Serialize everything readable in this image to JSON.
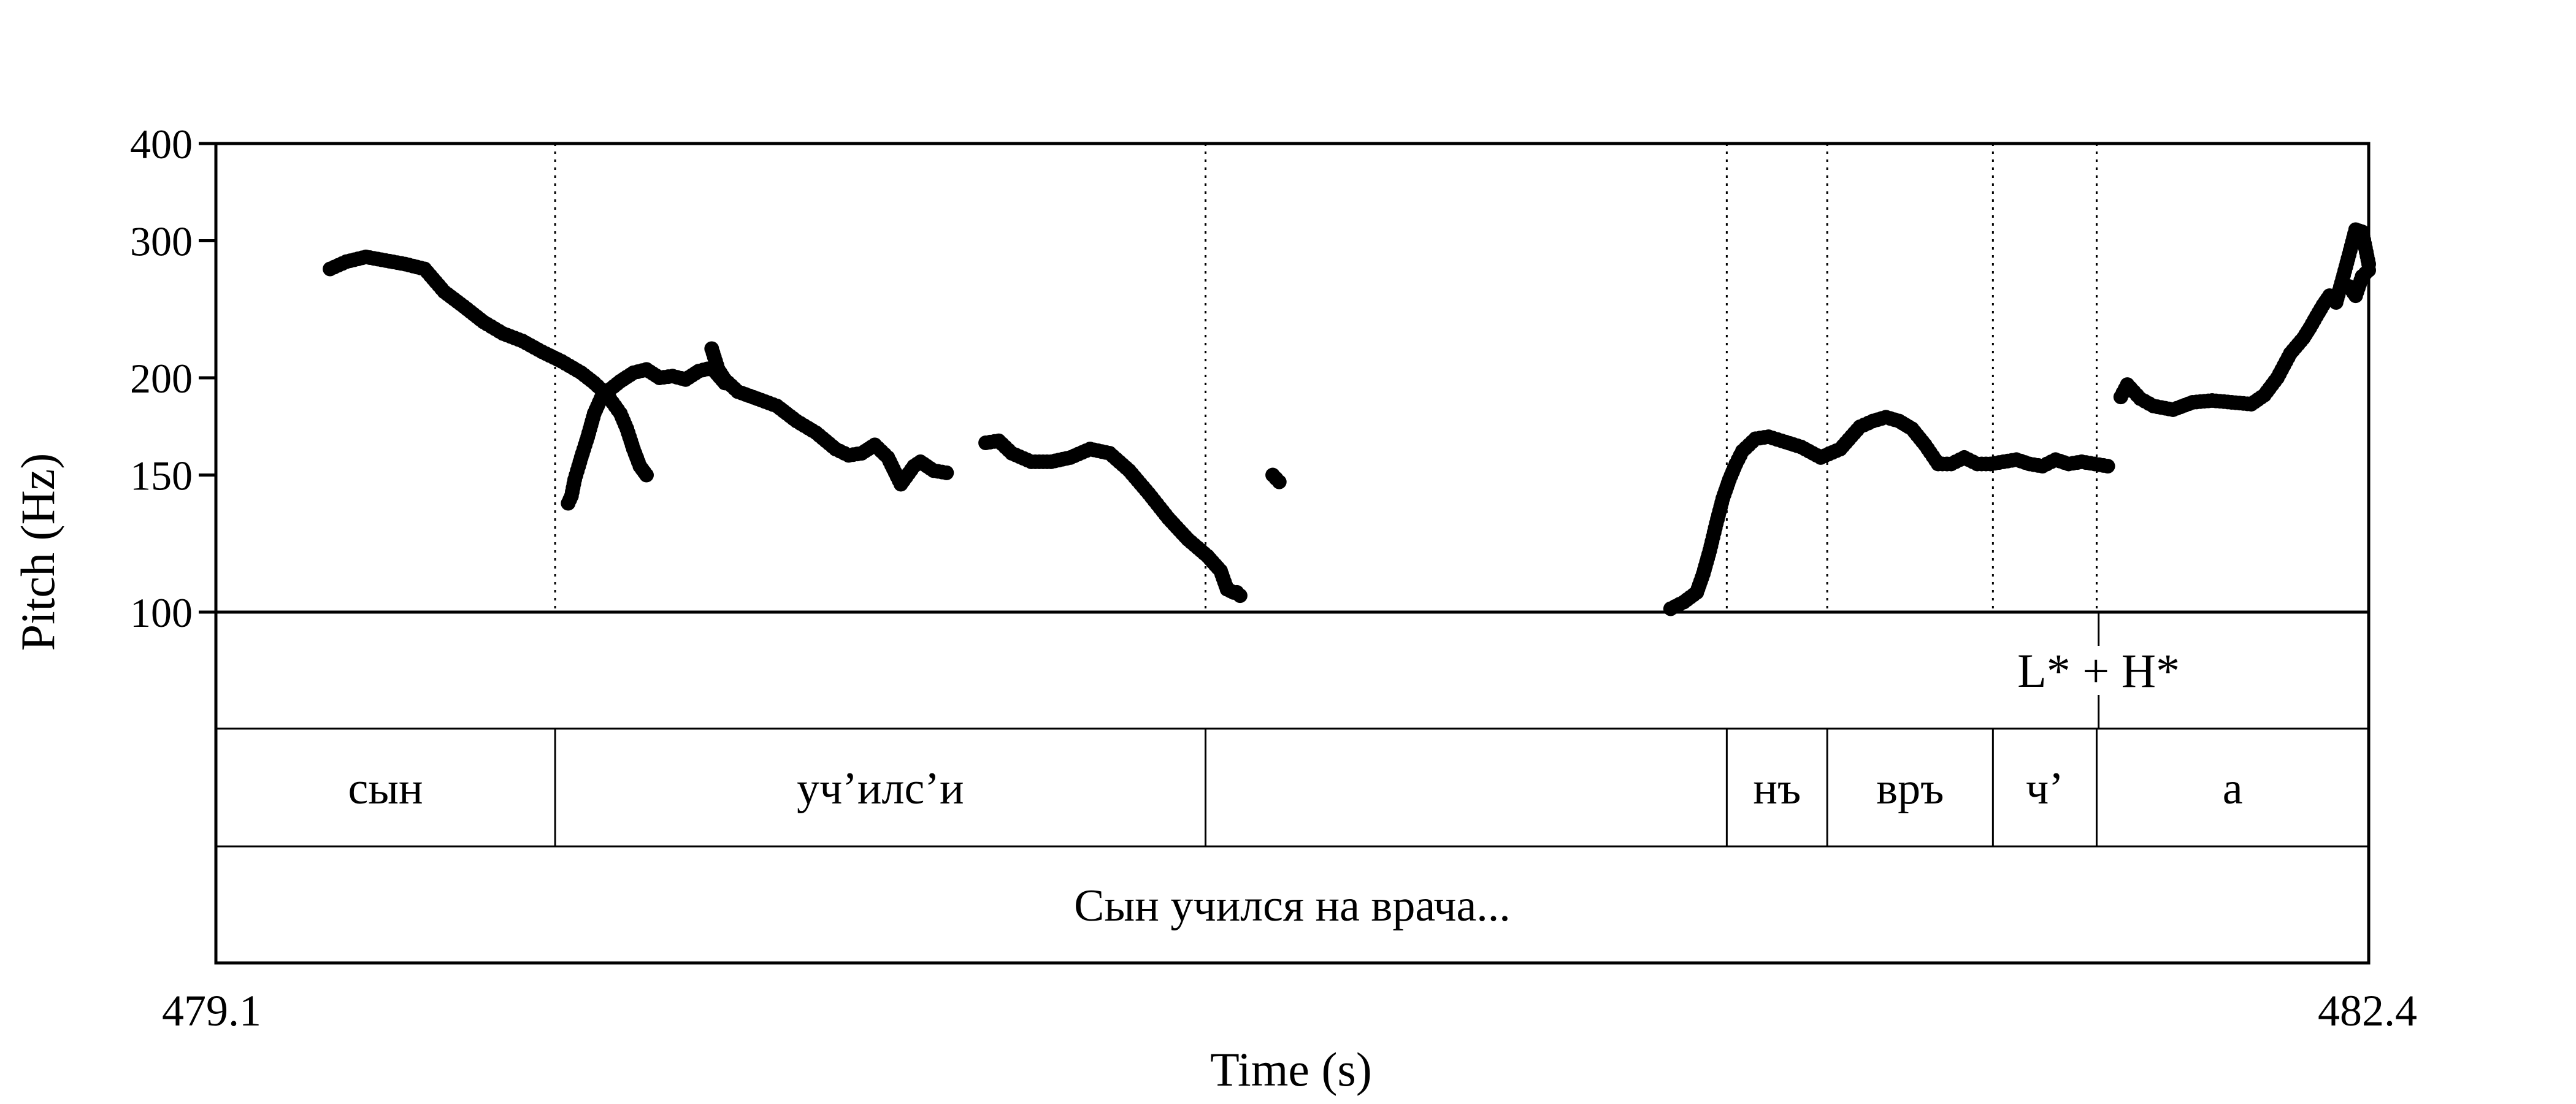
{
  "chart_data": {
    "type": "scatter",
    "title": "",
    "xlabel": "Time (s)",
    "ylabel": "Pitch (Hz)",
    "xlim": [
      479.1,
      482.4
    ],
    "ylim": [
      100,
      400
    ],
    "yscale": "log",
    "yticks": [
      100,
      150,
      200,
      300,
      400
    ],
    "x_end_labels": [
      "479.1",
      "482.4"
    ],
    "grid": false,
    "legend": "none",
    "marker_color": "#000000",
    "pitch_segments": [
      {
        "x": [
          479.28,
          479.32,
          479.36,
          479.4,
          479.44,
          479.48,
          479.52,
          479.56,
          479.6,
          479.63,
          479.66,
          479.69,
          479.72,
          479.735,
          479.745,
          479.755,
          479.76
        ],
        "y": [
          275,
          285,
          282,
          277,
          255,
          238,
          222,
          215,
          205,
          197,
          190,
          182,
          172,
          160,
          153,
          150,
          150
        ]
      },
      {
        "x": [
          479.64,
          479.625,
          479.635,
          479.645,
          479.655,
          479.66
        ],
        "y": [
          179,
          182,
          168,
          160,
          152,
          150
        ]
      },
      {
        "x": [
          479.63,
          479.66
        ],
        "y": [
          195,
          188
        ]
      },
      {
        "x": [
          479.62,
          479.64,
          479.655,
          479.665,
          479.675,
          479.69
        ],
        "y": [
          200,
          192,
          185,
          178,
          168,
          160
        ]
      },
      {
        "x": [
          479.63,
          479.66,
          479.69
        ],
        "y": [
          196,
          190,
          182
        ]
      },
      {
        "x": [
          479.655,
          479.665,
          479.68,
          479.695
        ],
        "y": [
          178,
          172,
          165,
          160
        ]
      },
      {
        "x": [
          479.67,
          479.68,
          479.69,
          479.7
        ],
        "y": [
          170,
          166,
          162,
          158
        ]
      },
      {
        "x": [
          479.72,
          479.73,
          479.74,
          479.75,
          479.76
        ],
        "y": [
          167,
          162,
          157,
          152,
          150
        ]
      },
      {
        "x": [
          479.63,
          479.65,
          479.67,
          479.69,
          479.71,
          479.73,
          479.75
        ],
        "y": [
          190,
          185,
          178,
          170,
          162,
          155,
          150
        ]
      },
      {
        "x": [
          479.62,
          479.64,
          479.66,
          479.68,
          479.7,
          479.72
        ],
        "y": [
          205,
          198,
          190,
          180,
          170,
          160
        ]
      },
      {
        "x": [
          479.735,
          479.745,
          479.755,
          479.76
        ],
        "y": [
          160,
          155,
          151,
          150
        ]
      }
    ],
    "pitch_segments_main": [
      {
        "x": [
          479.275,
          479.3,
          479.33,
          479.36,
          479.39,
          479.42,
          479.45,
          479.48,
          479.51,
          479.54,
          479.57,
          479.6,
          479.63,
          479.66,
          479.68,
          479.7,
          479.72,
          479.73,
          479.74,
          479.75,
          479.76
        ],
        "y": [
          276,
          282,
          286,
          283,
          280,
          276,
          258,
          247,
          236,
          228,
          223,
          216,
          210,
          203,
          197,
          190,
          180,
          172,
          162,
          154,
          150
        ]
      },
      {
        "x": [
          479.64,
          479.645,
          479.65,
          479.66,
          479.67,
          479.68,
          479.69,
          479.7,
          479.72,
          479.74,
          479.76,
          479.78,
          479.8,
          479.82,
          479.84,
          479.86,
          479.88
        ],
        "y": [
          138,
          141,
          148,
          158,
          168,
          180,
          188,
          192,
          198,
          203,
          205,
          200,
          201,
          199,
          204,
          206,
          197
        ]
      },
      {
        "x": [
          479.86,
          479.87,
          479.88,
          479.9,
          479.93,
          479.96,
          479.99,
          480.02,
          480.05,
          480.07,
          480.09,
          480.11,
          480.13,
          480.15,
          480.17,
          480.18,
          480.2,
          480.22
        ],
        "y": [
          218,
          205,
          199,
          192,
          188,
          184,
          176,
          170,
          162,
          159,
          160,
          164,
          158,
          146,
          154,
          156,
          152,
          151
        ]
      },
      {
        "x": [
          480.28,
          480.3,
          480.32,
          480.35,
          480.38,
          480.41,
          480.44,
          480.47,
          480.5,
          480.53,
          480.56,
          480.59,
          480.62,
          480.64,
          480.65,
          480.66,
          480.665,
          480.67
        ],
        "y": [
          165,
          166,
          160,
          156,
          156,
          158,
          162,
          160,
          152,
          142,
          132,
          124,
          118,
          113,
          107,
          106,
          106,
          105
        ]
      },
      {
        "x": [
          480.72,
          480.73
        ],
        "y": [
          150,
          147
        ]
      },
      {
        "x": [
          481.33,
          481.35,
          481.37,
          481.38,
          481.39,
          481.4,
          481.41,
          481.42,
          481.43,
          481.44,
          481.46,
          481.48,
          481.5,
          481.53,
          481.56,
          481.59,
          481.62,
          481.64,
          481.66,
          481.68,
          481.7,
          481.72,
          481.74,
          481.76,
          481.78,
          481.8,
          481.82,
          481.84,
          481.86,
          481.88,
          481.9,
          481.92,
          481.94,
          481.96,
          481.98,
          482.0
        ],
        "y": [
          101,
          103,
          106,
          112,
          120,
          130,
          140,
          148,
          155,
          161,
          167,
          168,
          166,
          163,
          158,
          162,
          173,
          176,
          178,
          176,
          172,
          164,
          155,
          155,
          158,
          155,
          155,
          156,
          157,
          155,
          154,
          157,
          155,
          156,
          155,
          154
        ]
      },
      {
        "x": [
          482.02,
          482.03,
          482.05,
          482.07,
          482.1,
          482.13,
          482.16,
          482.19,
          482.22,
          482.24,
          482.26,
          482.28,
          482.3,
          482.31,
          482.32,
          482.33,
          482.34,
          482.35,
          482.36,
          482.37,
          482.38,
          482.39,
          482.4
        ],
        "y": [
          189,
          196,
          188,
          184,
          182,
          186,
          187,
          186,
          185,
          190,
          200,
          215,
          225,
          232,
          240,
          248,
          255,
          250,
          268,
          288,
          310,
          308,
          280
        ]
      },
      {
        "x": [
          482.37,
          482.38,
          482.39,
          482.4
        ],
        "y": [
          262,
          255,
          270,
          275
        ]
      }
    ],
    "tiers": [
      {
        "name": "tone",
        "boundaries": [],
        "points": [
          {
            "time": 481.986,
            "label": "L* + H*"
          }
        ]
      },
      {
        "name": "syllables",
        "intervals": [
          {
            "start": 479.1,
            "end": 479.62,
            "label": "сын"
          },
          {
            "start": 479.62,
            "end": 480.617,
            "label": "уч’илс’и"
          },
          {
            "start": 480.617,
            "end": 481.416,
            "label": ""
          },
          {
            "start": 481.416,
            "end": 481.57,
            "label": "нъ"
          },
          {
            "start": 481.57,
            "end": 481.824,
            "label": "връ"
          },
          {
            "start": 481.824,
            "end": 481.983,
            "label": "ч’"
          },
          {
            "start": 481.983,
            "end": 482.4,
            "label": "а"
          }
        ]
      },
      {
        "name": "utterance",
        "intervals": [
          {
            "start": 479.1,
            "end": 482.4,
            "label": "Сын учился на врача..."
          }
        ]
      }
    ]
  }
}
